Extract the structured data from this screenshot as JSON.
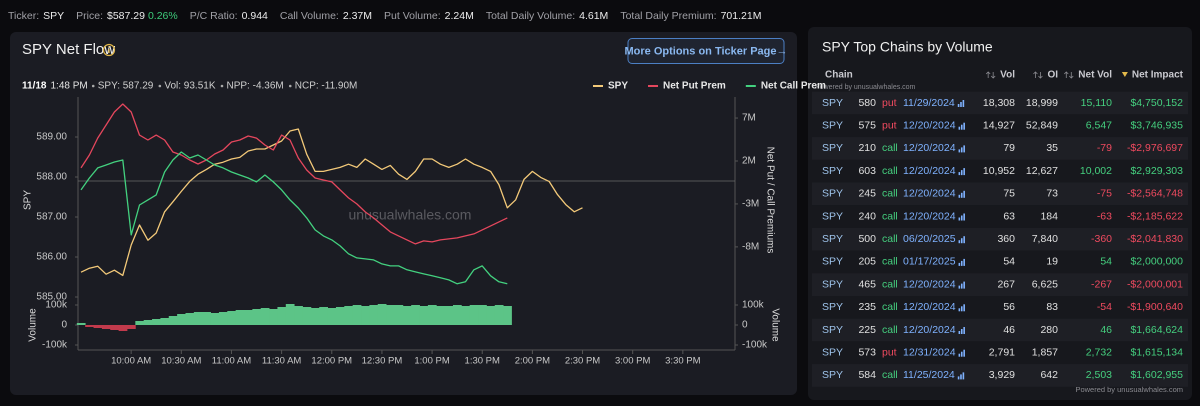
{
  "ticker_bar": [
    {
      "label": "Ticker:",
      "value": "SPY"
    },
    {
      "label": "Price:",
      "value": "$587.29",
      "change": "0.26%"
    },
    {
      "label": "P/C Ratio:",
      "value": "0.944"
    },
    {
      "label": "Call Volume:",
      "value": "2.37M"
    },
    {
      "label": "Put Volume:",
      "value": "2.24M"
    },
    {
      "label": "Total Daily Volume:",
      "value": "4.61M"
    },
    {
      "label": "Total Daily Premium:",
      "value": "701.21M"
    }
  ],
  "flow_panel": {
    "button": "More Options on Ticker Page→",
    "info": {
      "date": "11/18",
      "time": "1:48 PM",
      "items": [
        "SPY: 587.29",
        "Vol: 93.51K",
        "NPP: -4.36M",
        "NCP: -11.90M"
      ]
    }
  },
  "chart_data": [
    {
      "type": "line",
      "title": "SPY Net Flow",
      "ylabel": "SPY",
      "y2label": "Net Put / Call Premiums",
      "watermark": "unusualwhales.com",
      "legend": "upper right",
      "x": [
        570,
        575,
        580,
        585,
        590,
        595,
        600,
        605,
        610,
        615,
        620,
        625,
        630,
        635,
        640,
        645,
        650,
        655,
        660,
        665,
        670,
        675,
        680,
        685,
        690,
        695,
        700,
        705,
        710,
        715,
        720,
        725,
        730,
        735,
        740,
        745,
        750,
        755,
        760,
        765,
        770,
        775,
        780,
        785,
        790,
        795,
        800,
        805,
        810,
        815,
        820,
        825,
        830,
        835,
        840,
        845,
        850,
        855,
        860,
        865,
        870
      ],
      "xlim": [
        570,
        960
      ],
      "ylim": [
        584.9,
        590.0
      ],
      "yticks": [
        {
          "value": 585,
          "label": "585.00"
        },
        {
          "value": 586,
          "label": "586.00"
        },
        {
          "value": 587,
          "label": "587.00"
        },
        {
          "value": 588,
          "label": "588.00"
        },
        {
          "value": 589,
          "label": "589.00"
        }
      ],
      "y2lim": [
        -14300000,
        9450000
      ],
      "y2ticks": [
        {
          "value": -8000000,
          "label": "-8M"
        },
        {
          "value": -3000000,
          "label": "-3M"
        },
        {
          "value": 2000000,
          "label": "2M"
        },
        {
          "value": 7000000,
          "label": "7M"
        }
      ],
      "series": [
        {
          "name": "SPY",
          "color": "#f3c979",
          "values": [
            585.62,
            585.72,
            585.77,
            585.57,
            585.67,
            585.54,
            586.3,
            586.8,
            586.42,
            586.6,
            587.13,
            587.38,
            587.64,
            587.89,
            588.07,
            588.19,
            588.32,
            588.37,
            588.45,
            588.49,
            588.65,
            588.7,
            588.7,
            588.8,
            588.9,
            589.15,
            589.2,
            588.57,
            588.14,
            588.14,
            588.19,
            588.24,
            588.32,
            588.24,
            588.45,
            588.32,
            588.19,
            588.29,
            588.07,
            587.94,
            588.14,
            588.45,
            588.45,
            588.32,
            588.24,
            588.32,
            588.45,
            588.32,
            588.24,
            588.14,
            587.81,
            587.23,
            587.43,
            587.94,
            588.14,
            587.99,
            587.89,
            587.56,
            587.31,
            587.13,
            587.23
          ]
        },
        {
          "name": "Net Put Prem",
          "color": "#e5475d",
          "axis": "y2",
          "values": [
            1190000,
            2700000,
            4670000,
            6190000,
            7700000,
            8630000,
            7700000,
            5020000,
            4440000,
            5020000,
            4440000,
            3050000,
            2700000,
            2120000,
            1650000,
            2120000,
            2810000,
            3280000,
            4210000,
            4440000,
            4910000,
            4670000,
            3860000,
            3280000,
            5020000,
            4440000,
            2350000,
            950000,
            20000,
            -210000,
            -440000,
            -1370000,
            -2300000,
            -3000000,
            -3930000,
            -4630000,
            -5440000,
            -6260000,
            -6720000,
            -7190000,
            -7650000,
            -7300000,
            -7420000,
            -7190000,
            -7070000,
            -6950000,
            -6720000,
            -6490000,
            -6020000,
            -5560000,
            -5090000,
            -4630000,
            null,
            null,
            null,
            null,
            null,
            null,
            null,
            null,
            null
          ]
        },
        {
          "name": "Net Call Prem",
          "color": "#43d17f",
          "axis": "y2",
          "values": [
            -1370000,
            20000,
            1190000,
            1530000,
            1880000,
            2120000,
            -6600000,
            -3120000,
            -2530000,
            -1950000,
            720000,
            2120000,
            3050000,
            2350000,
            2700000,
            2120000,
            1530000,
            1190000,
            720000,
            370000,
            20000,
            -440000,
            370000,
            -440000,
            -1370000,
            -2530000,
            -3470000,
            -4630000,
            -6020000,
            -6720000,
            -7190000,
            -7880000,
            -8810000,
            -9280000,
            -9400000,
            -9510000,
            -9980000,
            -10210000,
            -10210000,
            -10670000,
            -10910000,
            -11140000,
            -11370000,
            -11600000,
            -11840000,
            -12300000,
            -12070000,
            -10670000,
            -10210000,
            -11370000,
            -12070000,
            -12300000,
            null,
            null,
            null,
            null,
            null,
            null,
            null,
            null,
            null
          ]
        }
      ]
    },
    {
      "type": "bar",
      "ylabel": "Volume",
      "y2label": "Volume",
      "color": "#5cc487",
      "negative_color": "#c23a4c",
      "x": [
        570,
        575,
        580,
        585,
        590,
        595,
        600,
        605,
        610,
        615,
        620,
        625,
        630,
        635,
        640,
        645,
        650,
        655,
        660,
        665,
        670,
        675,
        680,
        685,
        690,
        695,
        700,
        705,
        710,
        715,
        720,
        725,
        730,
        735,
        740,
        745,
        750,
        755,
        760,
        765,
        770,
        775,
        780,
        785,
        790,
        795,
        800,
        805,
        810,
        815,
        820,
        825,
        830,
        835,
        840,
        845,
        850,
        855,
        860,
        865,
        870
      ],
      "xlim": [
        570,
        960
      ],
      "xticks": [
        {
          "value": 600,
          "label": "10:00 AM"
        },
        {
          "value": 630,
          "label": "10:30 AM"
        },
        {
          "value": 660,
          "label": "11:00 AM"
        },
        {
          "value": 690,
          "label": "11:30 AM"
        },
        {
          "value": 720,
          "label": "12:00 PM"
        },
        {
          "value": 750,
          "label": "12:30 PM"
        },
        {
          "value": 780,
          "label": "1:00 PM"
        },
        {
          "value": 810,
          "label": "1:30 PM"
        },
        {
          "value": 840,
          "label": "2:00 PM"
        },
        {
          "value": 870,
          "label": "2:30 PM"
        },
        {
          "value": 900,
          "label": "3:00 PM"
        },
        {
          "value": 930,
          "label": "3:30 PM"
        }
      ],
      "ylim": [
        -125000,
        120000
      ],
      "yticks": [
        {
          "value": -100000,
          "label": "-100k"
        },
        0,
        {
          "value": 100000,
          "label": "100k"
        }
      ],
      "y2lim": [
        -125000,
        120000
      ],
      "y2ticks": [
        {
          "value": -100000,
          "label": "-100k"
        },
        0,
        {
          "value": 100000,
          "label": "100k"
        }
      ],
      "values": [
        10000,
        -10000,
        -15000,
        -20000,
        -25000,
        -30000,
        -20000,
        20000,
        25000,
        30000,
        35000,
        45000,
        55000,
        60000,
        65000,
        65000,
        60000,
        65000,
        70000,
        75000,
        75000,
        80000,
        85000,
        80000,
        90000,
        105000,
        95000,
        90000,
        85000,
        90000,
        85000,
        90000,
        95000,
        100000,
        95000,
        100000,
        105000,
        100000,
        100000,
        95000,
        100000,
        95000,
        100000,
        95000,
        95000,
        100000,
        95000,
        100000,
        100000,
        95000,
        100000,
        95000,
        null,
        null,
        null,
        null,
        null,
        null,
        null,
        null,
        null
      ]
    }
  ],
  "table": {
    "title": "SPY Top Chains by Volume",
    "columns": [
      "Chain",
      "Vol",
      "OI",
      "Net Vol",
      "Net Impact"
    ],
    "powered_by": "Powered by unusualwhales.com",
    "footer": "Powered by unusualwhales.com",
    "type_colors": {
      "put": "#ef4a5f",
      "call": "#45d07f"
    },
    "rows": [
      [
        "SPY",
        "580",
        "put",
        "11/29/2024",
        "18,308",
        "18,999",
        "15,110",
        "$4,750,152"
      ],
      [
        "SPY",
        "575",
        "put",
        "12/20/2024",
        "14,927",
        "52,849",
        "6,547",
        "$3,746,935"
      ],
      [
        "SPY",
        "210",
        "call",
        "12/20/2024",
        "79",
        "35",
        "-79",
        "-$2,976,697"
      ],
      [
        "SPY",
        "603",
        "call",
        "12/20/2024",
        "10,952",
        "12,627",
        "10,002",
        "$2,929,303"
      ],
      [
        "SPY",
        "245",
        "call",
        "12/20/2024",
        "75",
        "73",
        "-75",
        "-$2,564,748"
      ],
      [
        "SPY",
        "240",
        "call",
        "12/20/2024",
        "63",
        "184",
        "-63",
        "-$2,185,622"
      ],
      [
        "SPY",
        "500",
        "call",
        "06/20/2025",
        "360",
        "7,840",
        "-360",
        "-$2,041,830"
      ],
      [
        "SPY",
        "205",
        "call",
        "01/17/2025",
        "54",
        "19",
        "54",
        "$2,000,000"
      ],
      [
        "SPY",
        "465",
        "call",
        "12/20/2024",
        "267",
        "6,625",
        "-267",
        "-$2,000,001"
      ],
      [
        "SPY",
        "235",
        "call",
        "12/20/2024",
        "56",
        "83",
        "-54",
        "-$1,900,640"
      ],
      [
        "SPY",
        "225",
        "call",
        "12/20/2024",
        "46",
        "280",
        "46",
        "$1,664,624"
      ],
      [
        "SPY",
        "573",
        "put",
        "12/31/2024",
        "2,791",
        "1,857",
        "2,732",
        "$1,615,134"
      ],
      [
        "SPY",
        "584",
        "call",
        "11/25/2024",
        "3,929",
        "642",
        "2,503",
        "$1,602,955"
      ]
    ]
  }
}
